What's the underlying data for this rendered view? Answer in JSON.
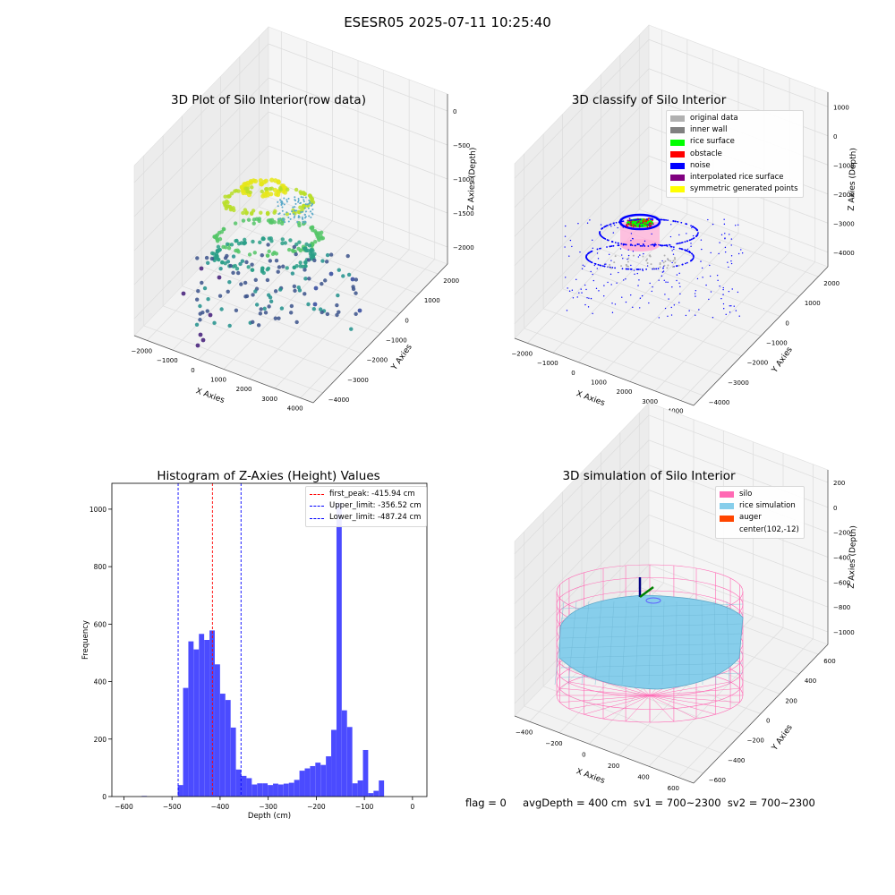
{
  "figure": {
    "suptitle": "ESESR05 2025-07-11 10:25:40",
    "status_line": "flag = 0     avgDepth = 400 cm  sv1 = 700~2300  sv2 = 700~2300"
  },
  "colors": {
    "gray": "#b0b0b0",
    "dark_gray": "#808080",
    "green": "#00ff00",
    "red": "#ff0000",
    "blue": "#0000ff",
    "purple": "#800080",
    "yellow": "#ffff00",
    "hist": "#4b4bff",
    "silo": "#ff69b4",
    "rice": "#87ceeb",
    "auger": "#ff4500"
  },
  "chart_data": [
    {
      "type": "scatter",
      "title": "3D Plot of Silo Interior(row data)",
      "xlabel": "X Axies",
      "ylabel": "Y Axies",
      "zlabel": "Z Axies (Depth)",
      "x_ticks": [
        "−2000",
        "−1000",
        "0",
        "1000",
        "2000",
        "3000",
        "4000"
      ],
      "y_ticks": [
        "−4000",
        "−3000",
        "−2000",
        "−1000",
        "0",
        "1000",
        "2000"
      ],
      "z_ticks": [
        "0",
        "−500",
        "−1000",
        "−1500",
        "−2000"
      ],
      "colormap": "viridis"
    },
    {
      "type": "scatter",
      "title": "3D classify of Silo Interior",
      "xlabel": "X Axies",
      "ylabel": "Y Axies",
      "zlabel": "Z Axies (Depth)",
      "x_ticks": [
        "−2000",
        "−1000",
        "0",
        "1000",
        "2000",
        "3000",
        "4000"
      ],
      "y_ticks": [
        "−4000",
        "−3000",
        "−2000",
        "−1000",
        "0",
        "1000",
        "2000"
      ],
      "z_ticks": [
        "1000",
        "0",
        "−1000",
        "−2000",
        "−3000",
        "−4000"
      ],
      "legend": [
        {
          "label": "original data",
          "color": "#b0b0b0"
        },
        {
          "label": "inner wall",
          "color": "#808080"
        },
        {
          "label": "rice surface",
          "color": "#00ff00"
        },
        {
          "label": "obstacle",
          "color": "#ff0000"
        },
        {
          "label": "noise",
          "color": "#0000ff"
        },
        {
          "label": "interpolated rice surface",
          "color": "#800080"
        },
        {
          "label": "symmetric generated points",
          "color": "#ffff00"
        }
      ]
    },
    {
      "type": "bar",
      "title": "Histogram of Z-Axies (Height) Values",
      "xlabel": "Depth (cm)",
      "ylabel": "Frequency",
      "xlim": [
        -625,
        30
      ],
      "ylim": [
        0,
        1090
      ],
      "x_ticks": [
        -600,
        -500,
        -400,
        -300,
        -200,
        -100,
        0
      ],
      "y_ticks": [
        0,
        200,
        400,
        600,
        800,
        1000
      ],
      "bin_width": 10.9,
      "bins": [
        {
          "x": -563,
          "y": 2
        },
        {
          "x": -488,
          "y": 40
        },
        {
          "x": -477,
          "y": 378
        },
        {
          "x": -466,
          "y": 540
        },
        {
          "x": -455,
          "y": 512
        },
        {
          "x": -444,
          "y": 566
        },
        {
          "x": -433,
          "y": 545
        },
        {
          "x": -422,
          "y": 578
        },
        {
          "x": -411,
          "y": 460
        },
        {
          "x": -400,
          "y": 358
        },
        {
          "x": -389,
          "y": 336
        },
        {
          "x": -378,
          "y": 240
        },
        {
          "x": -367,
          "y": 94
        },
        {
          "x": -356,
          "y": 72
        },
        {
          "x": -345,
          "y": 64
        },
        {
          "x": -334,
          "y": 42
        },
        {
          "x": -323,
          "y": 46
        },
        {
          "x": -312,
          "y": 46
        },
        {
          "x": -301,
          "y": 40
        },
        {
          "x": -290,
          "y": 45
        },
        {
          "x": -279,
          "y": 42
        },
        {
          "x": -268,
          "y": 45
        },
        {
          "x": -257,
          "y": 48
        },
        {
          "x": -246,
          "y": 58
        },
        {
          "x": -235,
          "y": 90
        },
        {
          "x": -224,
          "y": 98
        },
        {
          "x": -213,
          "y": 106
        },
        {
          "x": -202,
          "y": 118
        },
        {
          "x": -191,
          "y": 110
        },
        {
          "x": -180,
          "y": 140
        },
        {
          "x": -169,
          "y": 232
        },
        {
          "x": -158,
          "y": 1022
        },
        {
          "x": -147,
          "y": 300
        },
        {
          "x": -136,
          "y": 242
        },
        {
          "x": -125,
          "y": 46
        },
        {
          "x": -114,
          "y": 56
        },
        {
          "x": -103,
          "y": 162
        },
        {
          "x": -92,
          "y": 12
        },
        {
          "x": -81,
          "y": 20
        },
        {
          "x": -70,
          "y": 56
        }
      ],
      "vlines": [
        {
          "label": "first_peak: -415.94 cm",
          "x": -415.94,
          "color": "#ff0000"
        },
        {
          "label": "Upper_limit: -356.52 cm",
          "x": -356.52,
          "color": "#0000ff"
        },
        {
          "label": "Lower_limit: -487.24 cm",
          "x": -487.24,
          "color": "#0000ff"
        }
      ]
    },
    {
      "type": "scatter",
      "title": "3D simulation of Silo Interior",
      "xlabel": "X Axies",
      "ylabel": "Y Axies",
      "zlabel": "Z Axies (Depth)",
      "x_ticks": [
        "−400",
        "−200",
        "0",
        "200",
        "400",
        "600"
      ],
      "y_ticks": [
        "−600",
        "−400",
        "−200",
        "0",
        "200",
        "400",
        "600"
      ],
      "z_ticks": [
        "200",
        "0",
        "−200",
        "−400",
        "−600",
        "−800",
        "−1000"
      ],
      "legend": [
        {
          "label": "silo",
          "color": "#ff69b4"
        },
        {
          "label": "rice simulation",
          "color": "#87ceeb"
        },
        {
          "label": "auger",
          "color": "#ff4500"
        },
        {
          "label": "center(102,-12)",
          "color": ""
        }
      ]
    }
  ]
}
